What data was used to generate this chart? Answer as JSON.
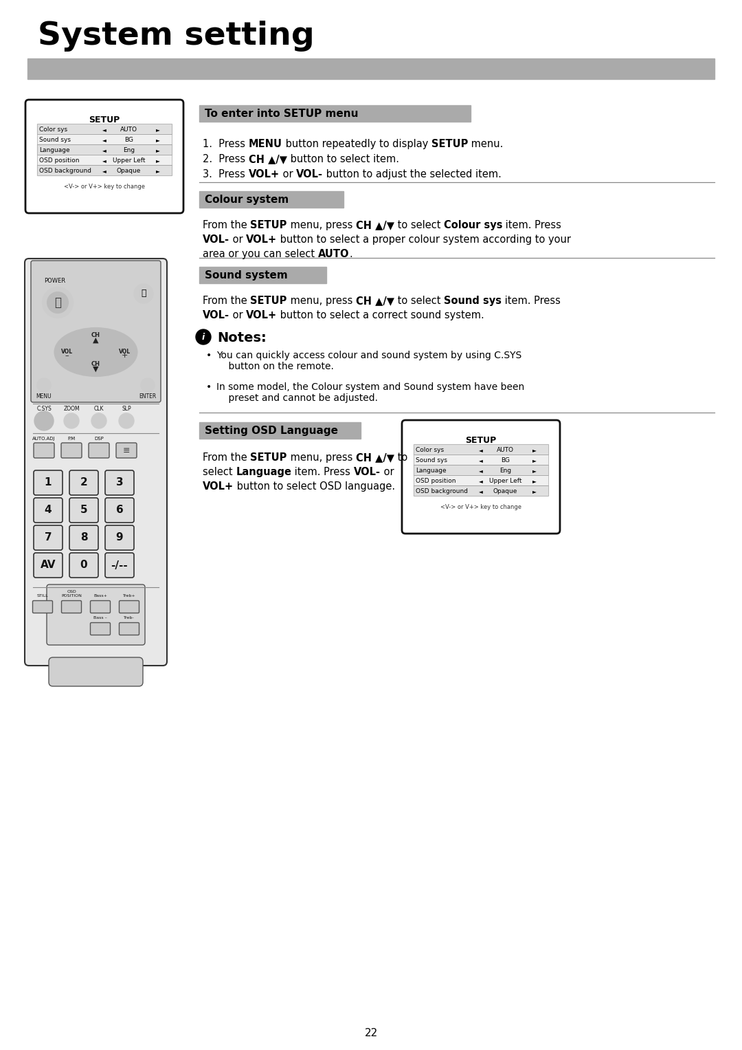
{
  "title": "System setting",
  "gray_bar_color": "#aaaaaa",
  "page_number": "22",
  "background_color": "#ffffff",
  "section_header_bg": "#aaaaaa",
  "setup_menu": {
    "title": "SETUP",
    "rows": [
      {
        "label": "Color sys",
        "value": "AUTO"
      },
      {
        "label": "Sound sys",
        "value": "BG"
      },
      {
        "label": "Language",
        "value": "Eng"
      },
      {
        "label": "OSD position",
        "value": "Upper Left"
      },
      {
        "label": "OSD background",
        "value": "Opaque"
      }
    ],
    "footer": "<V-> or V+> key to change"
  },
  "section1_header": "To enter into SETUP menu",
  "section2_header": "Colour system",
  "section3_header": "Sound system",
  "section4_header": "Setting OSD Language",
  "notes_title": "Notes:",
  "notes_bullets": [
    "You can quickly access colour and sound system by using C.SYS\n    button on the remote.",
    "In some model, the Colour system and Sound system have been\n    preset and cannot be adjusted."
  ]
}
